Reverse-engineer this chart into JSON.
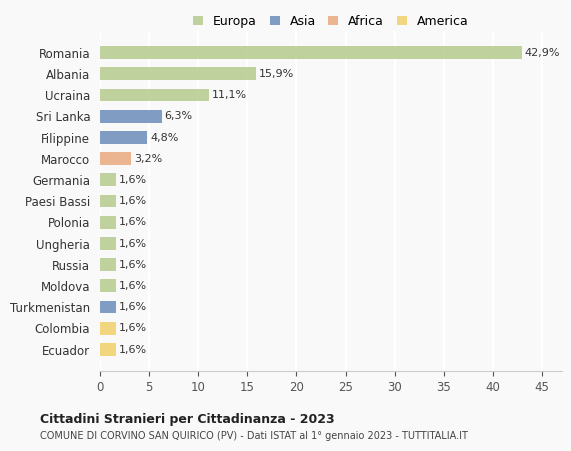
{
  "categories": [
    "Romania",
    "Albania",
    "Ucraina",
    "Sri Lanka",
    "Filippine",
    "Marocco",
    "Germania",
    "Paesi Bassi",
    "Polonia",
    "Ungheria",
    "Russia",
    "Moldova",
    "Turkmenistan",
    "Colombia",
    "Ecuador"
  ],
  "values": [
    42.9,
    15.9,
    11.1,
    6.3,
    4.8,
    3.2,
    1.6,
    1.6,
    1.6,
    1.6,
    1.6,
    1.6,
    1.6,
    1.6,
    1.6
  ],
  "labels": [
    "42,9%",
    "15,9%",
    "11,1%",
    "6,3%",
    "4,8%",
    "3,2%",
    "1,6%",
    "1,6%",
    "1,6%",
    "1,6%",
    "1,6%",
    "1,6%",
    "1,6%",
    "1,6%",
    "1,6%"
  ],
  "continent": [
    "Europa",
    "Europa",
    "Europa",
    "Asia",
    "Asia",
    "Africa",
    "Europa",
    "Europa",
    "Europa",
    "Europa",
    "Europa",
    "Europa",
    "Asia",
    "America",
    "America"
  ],
  "colors": {
    "Europa": "#b5cc8e",
    "Asia": "#6b8cba",
    "Africa": "#e8a97e",
    "America": "#f0d06a"
  },
  "legend_order": [
    "Europa",
    "Asia",
    "Africa",
    "America"
  ],
  "title1": "Cittadini Stranieri per Cittadinanza - 2023",
  "title2": "COMUNE DI CORVINO SAN QUIRICO (PV) - Dati ISTAT al 1° gennaio 2023 - TUTTITALIA.IT",
  "xlim": [
    0,
    47
  ],
  "xticks": [
    0,
    5,
    10,
    15,
    20,
    25,
    30,
    35,
    40,
    45
  ],
  "background_color": "#f9f9f9",
  "grid_color": "#ffffff"
}
